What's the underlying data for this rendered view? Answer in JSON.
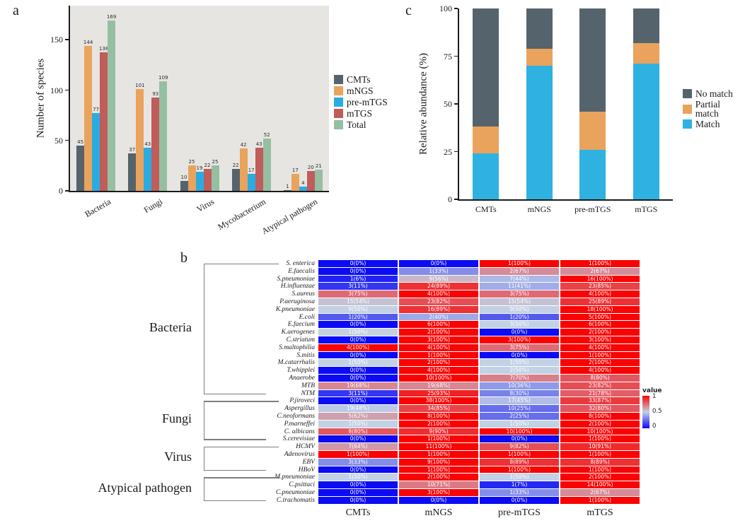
{
  "figure": {
    "panel_a_label": "a",
    "panel_b_label": "b",
    "panel_c_label": "c"
  },
  "chart_data": [
    {
      "id": "panel_a",
      "type": "bar",
      "title": "",
      "xlabel": "",
      "ylabel": "Number of species",
      "categories": [
        "Bacteria",
        "Fungi",
        "Virus",
        "Mycobacterium",
        "Atypical pathogen"
      ],
      "yticks": [
        0,
        50,
        100,
        150
      ],
      "ylim": [
        0,
        184
      ],
      "grid": false,
      "legend_position": "right",
      "panel_background": "#e7e5e2",
      "series": [
        {
          "name": "CMTs",
          "color": "#55636c",
          "values": [
            45,
            37,
            10,
            22,
            1
          ]
        },
        {
          "name": "mNGS",
          "color": "#e9a35c",
          "values": [
            144,
            101,
            25,
            42,
            17
          ]
        },
        {
          "name": "pre-mTGS",
          "color": "#2aace2",
          "values": [
            77,
            43,
            19,
            17,
            4
          ]
        },
        {
          "name": "mTGS",
          "color": "#c05c59",
          "values": [
            138,
            93,
            22,
            43,
            20
          ]
        },
        {
          "name": "Total",
          "color": "#96bfa2",
          "values": [
            169,
            109,
            25,
            52,
            21
          ]
        }
      ]
    },
    {
      "id": "panel_c",
      "type": "stacked-bar",
      "title": "",
      "xlabel": "",
      "ylabel": "Relative abundance (%)",
      "categories": [
        "CMTs",
        "mNGS",
        "pre-mTGS",
        "mTGS"
      ],
      "yticks": [
        0,
        25,
        50,
        75,
        100
      ],
      "ylim": [
        0,
        100
      ],
      "grid": false,
      "legend_position": "right",
      "legend_order": [
        "No match",
        "Partial match",
        "Match"
      ],
      "series": [
        {
          "name": "Match",
          "color": "#2fb1e2",
          "values": [
            24,
            70,
            26,
            71
          ]
        },
        {
          "name": "Partial match",
          "color": "#e9a35c",
          "values": [
            14,
            9,
            20,
            11
          ]
        },
        {
          "name": "No match",
          "color": "#55636c",
          "values": [
            62,
            21,
            54,
            18
          ]
        }
      ]
    },
    {
      "id": "panel_b",
      "type": "heatmap",
      "columns": [
        "CMTs",
        "mNGS",
        "pre-mTGS",
        "mTGS"
      ],
      "colorscale": {
        "title": "value",
        "low": "#0b0bf4",
        "mid": "#c2d1e4",
        "high": "#f90404",
        "ticks": [
          "1",
          "0.5",
          "0"
        ]
      },
      "groups": [
        {
          "name": "Bacteria",
          "start": 0,
          "end": 17
        },
        {
          "name": "Fungi",
          "start": 18,
          "end": 23
        },
        {
          "name": "Virus",
          "start": 24,
          "end": 27
        },
        {
          "name": "Atypical pathogen",
          "start": 28,
          "end": 31
        }
      ],
      "rows": [
        {
          "label": "S. enterica",
          "cells": [
            "0(0%)",
            "0(0%)",
            "1(100%)",
            "1(100%)"
          ]
        },
        {
          "label": "E.faecalis",
          "cells": [
            "0(0%)",
            "1(33%)",
            "2(67%)",
            "2(67%)"
          ]
        },
        {
          "label": "S.pneumoniae",
          "cells": [
            "1(6%)",
            "9(56%)",
            "7(44%)",
            "16(100%)"
          ]
        },
        {
          "label": "H.influenzae",
          "cells": [
            "3(11%)",
            "24(89%)",
            "11(41%)",
            "23(85%)"
          ]
        },
        {
          "label": "S.aureus",
          "cells": [
            "3(75%)",
            "4(100%)",
            "3(75%)",
            "4(100%)"
          ]
        },
        {
          "label": "P.aeruginosa",
          "cells": [
            "15(54%)",
            "23(82%)",
            "15(54%)",
            "25(89%)"
          ]
        },
        {
          "label": "K.pneumoniae",
          "cells": [
            "9(50%)",
            "16(89%)",
            "9(50%)",
            "18(100%)"
          ]
        },
        {
          "label": "E.coli",
          "cells": [
            "1(20%)",
            "2(40%)",
            "1(20%)",
            "5(100%)"
          ]
        },
        {
          "label": "E.faecium",
          "cells": [
            "0(0%)",
            "6(100%)",
            "3(50%)",
            "6(100%)"
          ]
        },
        {
          "label": "K.aerogenes",
          "cells": [
            "1(50%)",
            "2(100%)",
            "0(0%)",
            "2(100%)"
          ]
        },
        {
          "label": "C.striatum",
          "cells": [
            "0(0%)",
            "3(100%)",
            "3(100%)",
            "3(100%)"
          ]
        },
        {
          "label": "S.maltophilia",
          "cells": [
            "4(100%)",
            "4(100%)",
            "3(75%)",
            "4(100%)"
          ]
        },
        {
          "label": "S.mitis",
          "cells": [
            "0(0%)",
            "1(100%)",
            "0(0%)",
            "1(100%)"
          ]
        },
        {
          "label": "M.catarrhalis",
          "cells": [
            "1(50%)",
            "2(100%)",
            "1(50%)",
            "2(100%)"
          ]
        },
        {
          "label": "T.whipplei",
          "cells": [
            "0(0%)",
            "4(100%)",
            "2(50%)",
            "4(100%)"
          ]
        },
        {
          "label": "Anaerobe",
          "cells": [
            "0(0%)",
            "10(100%)",
            "7(70%)",
            "8(80%)"
          ]
        },
        {
          "label": "MTB",
          "cells": [
            "19(68%)",
            "19(68%)",
            "10(36%)",
            "23(82%)"
          ]
        },
        {
          "label": "NTM",
          "cells": [
            "3(11%)",
            "25(93%)",
            "8(30%)",
            "21(78%)"
          ]
        },
        {
          "label": "P.jiroveci",
          "cells": [
            "0(0%)",
            "38(100%)",
            "17(45%)",
            "33(87%)"
          ]
        },
        {
          "label": "Aspergillus",
          "cells": [
            "19(48%)",
            "34(85%)",
            "10(25%)",
            "32(80%)"
          ]
        },
        {
          "label": "C.neoformans",
          "cells": [
            "5(62%)",
            "8(100%)",
            "2(25%)",
            "8(100%)"
          ]
        },
        {
          "label": "P.marneffei",
          "cells": [
            "1(50%)",
            "2(100%)",
            "1(50%)",
            "2(100%)"
          ]
        },
        {
          "label": "C. albicans",
          "cells": [
            "8(80%)",
            "9(90%)",
            "10(100%)",
            "10(100%)"
          ]
        },
        {
          "label": "S.cerevisiae",
          "cells": [
            "0(0%)",
            "1(100%)",
            "0(0%)",
            "1(100%)"
          ]
        },
        {
          "label": "HCMV",
          "cells": [
            "7(64%)",
            "11(100%)",
            "9(82%)",
            "10(91%)"
          ]
        },
        {
          "label": "Adenovirus",
          "cells": [
            "1(100%)",
            "1(100%)",
            "1(100%)",
            "1(100%)"
          ]
        },
        {
          "label": "EBV",
          "cells": [
            "3(33%)",
            "9(100%)",
            "8(89%)",
            "8(89%)"
          ]
        },
        {
          "label": "HBoV",
          "cells": [
            "0(0%)",
            "1(100%)",
            "1(100%)",
            "1(100%)"
          ]
        },
        {
          "label": "M.pneumoniae",
          "cells": [
            "1(50%)",
            "2(100%)",
            "1(50%)",
            "2(100%)"
          ]
        },
        {
          "label": "C.psittaci",
          "cells": [
            "0(0%)",
            "10(71%)",
            "1(7%)",
            "14(100%)"
          ]
        },
        {
          "label": "C.pneumoniae",
          "cells": [
            "0(0%)",
            "3(100%)",
            "1(33%)",
            "2(67%)"
          ]
        },
        {
          "label": "C.trachomatis",
          "cells": [
            "0(0%)",
            "0(0%)",
            "0(0%)",
            "1(100%)"
          ]
        }
      ]
    }
  ]
}
